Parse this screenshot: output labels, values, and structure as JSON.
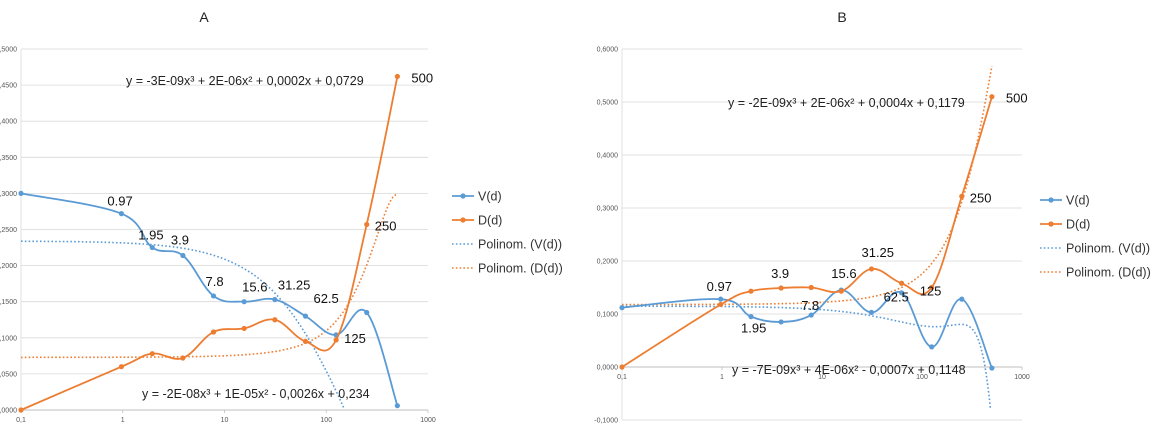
{
  "colors": {
    "v": "#5b9bd5",
    "d": "#ed7d31",
    "highlight": "#ff0000",
    "grid": "#d9d9d9"
  },
  "chart_data": [
    {
      "type": "line",
      "title": "A",
      "x_scale": "log",
      "xlim": [
        0.1,
        1000
      ],
      "ylim": [
        0,
        0.5
      ],
      "x_ticks": [
        "0,1",
        "1",
        "10",
        "100",
        "1000"
      ],
      "y_ticks": [
        "0,0000",
        "0,0500",
        "0,1000",
        "0,1500",
        "0,2000",
        "0,2500",
        "0,3000",
        "0,3500",
        "0,4000",
        "0,4500",
        "0,5000"
      ],
      "grid": true,
      "legend_position": "right",
      "series": [
        {
          "name": "V(d)",
          "x": [
            0.1,
            0.97,
            1.95,
            3.9,
            7.8,
            15.6,
            31.25,
            62.5,
            125,
            250,
            500
          ],
          "y": [
            0.3,
            0.272,
            0.225,
            0.214,
            0.158,
            0.15,
            0.153,
            0.13,
            0.104,
            0.135,
            0.006
          ]
        },
        {
          "name": "D(d)",
          "x": [
            0.1,
            0.97,
            1.95,
            3.9,
            7.8,
            15.6,
            31.25,
            62.5,
            125,
            250,
            500
          ],
          "y": [
            0.0,
            0.06,
            0.078,
            0.072,
            0.108,
            0.113,
            0.125,
            0.095,
            0.097,
            0.257,
            0.462
          ]
        },
        {
          "name": "Polinom. (V(d))",
          "trend": [
            -2e-08,
            1e-05,
            -0.0026,
            0.234
          ]
        },
        {
          "name": "Polinom. (D(d))",
          "trend": [
            -3e-09,
            2e-06,
            0.0002,
            0.0729
          ]
        }
      ],
      "point_labels": [
        {
          "text": "0.97",
          "x": 0.97,
          "y": 0.272
        },
        {
          "text": "1.95",
          "x": 1.95,
          "y": 0.225
        },
        {
          "text": "3.9",
          "x": 3.9,
          "y": 0.214
        },
        {
          "text": "7.8",
          "x": 7.8,
          "y": 0.158
        },
        {
          "text": "15.6",
          "x": 15.6,
          "y": 0.15
        },
        {
          "text": "31.25",
          "x": 31.25,
          "y": 0.153
        },
        {
          "text": "62.5",
          "x": 62.5,
          "y": 0.13,
          "highlight": true
        },
        {
          "text": "125",
          "x": 125,
          "y": 0.097
        },
        {
          "text": "250",
          "x": 250,
          "y": 0.257
        },
        {
          "text": "500",
          "x": 500,
          "y": 0.462
        }
      ],
      "annotations": [
        {
          "text": "y = -3E-09x³ + 2E-06x² + 0,0002x + 0,0729"
        },
        {
          "text": "y = -2E-08x³ + 1E-05x² - 0,0026x + 0,234"
        }
      ]
    },
    {
      "type": "line",
      "title": "B",
      "x_scale": "log",
      "xlim": [
        0.1,
        1000
      ],
      "ylim": [
        -0.1,
        0.6
      ],
      "x_ticks": [
        "0,1",
        "1",
        "10",
        "100",
        "1000"
      ],
      "y_ticks": [
        "-0,1000",
        "0,0000",
        "0,1000",
        "0,2000",
        "0,3000",
        "0,4000",
        "0,5000",
        "0,6000"
      ],
      "grid": true,
      "legend_position": "right",
      "series": [
        {
          "name": "V(d)",
          "x": [
            0.1,
            0.97,
            1.95,
            3.9,
            7.8,
            15.6,
            31.25,
            62.5,
            125,
            250,
            500
          ],
          "y": [
            0.112,
            0.128,
            0.095,
            0.085,
            0.098,
            0.145,
            0.103,
            0.14,
            0.038,
            0.128,
            -0.002
          ]
        },
        {
          "name": "D(d)",
          "x": [
            0.1,
            0.97,
            1.95,
            3.9,
            7.8,
            15.6,
            31.25,
            62.5,
            125,
            250,
            500
          ],
          "y": [
            0.0,
            0.118,
            0.143,
            0.149,
            0.15,
            0.143,
            0.185,
            0.158,
            0.15,
            0.322,
            0.51
          ]
        },
        {
          "name": "Polinom. (V(d))",
          "trend": [
            -7e-09,
            4e-06,
            -0.0007,
            0.1148
          ]
        },
        {
          "name": "Polinom. (D(d))",
          "trend": [
            -2e-09,
            2e-06,
            0.0004,
            0.1179
          ]
        }
      ],
      "point_labels": [
        {
          "text": "0.97",
          "x": 0.97,
          "y": 0.128
        },
        {
          "text": "1.95",
          "x": 1.95,
          "y": 0.095
        },
        {
          "text": "3.9",
          "x": 3.9,
          "y": 0.149
        },
        {
          "text": "7.8",
          "x": 7.8,
          "y": 0.098
        },
        {
          "text": "15.6",
          "x": 15.6,
          "y": 0.145
        },
        {
          "text": "31.25",
          "x": 31.25,
          "y": 0.185
        },
        {
          "text": "62.5",
          "x": 62.5,
          "y": 0.158,
          "highlight": true
        },
        {
          "text": "125",
          "x": 125,
          "y": 0.15
        },
        {
          "text": "250",
          "x": 250,
          "y": 0.322
        },
        {
          "text": "500",
          "x": 500,
          "y": 0.51
        }
      ],
      "annotations": [
        {
          "text": "y = -2E-09x³ + 2E-06x² + 0,0004x + 0,1179"
        },
        {
          "text": "y = -7E-09x³ + 4E-06x² - 0,0007x + 0,1148"
        }
      ]
    }
  ]
}
